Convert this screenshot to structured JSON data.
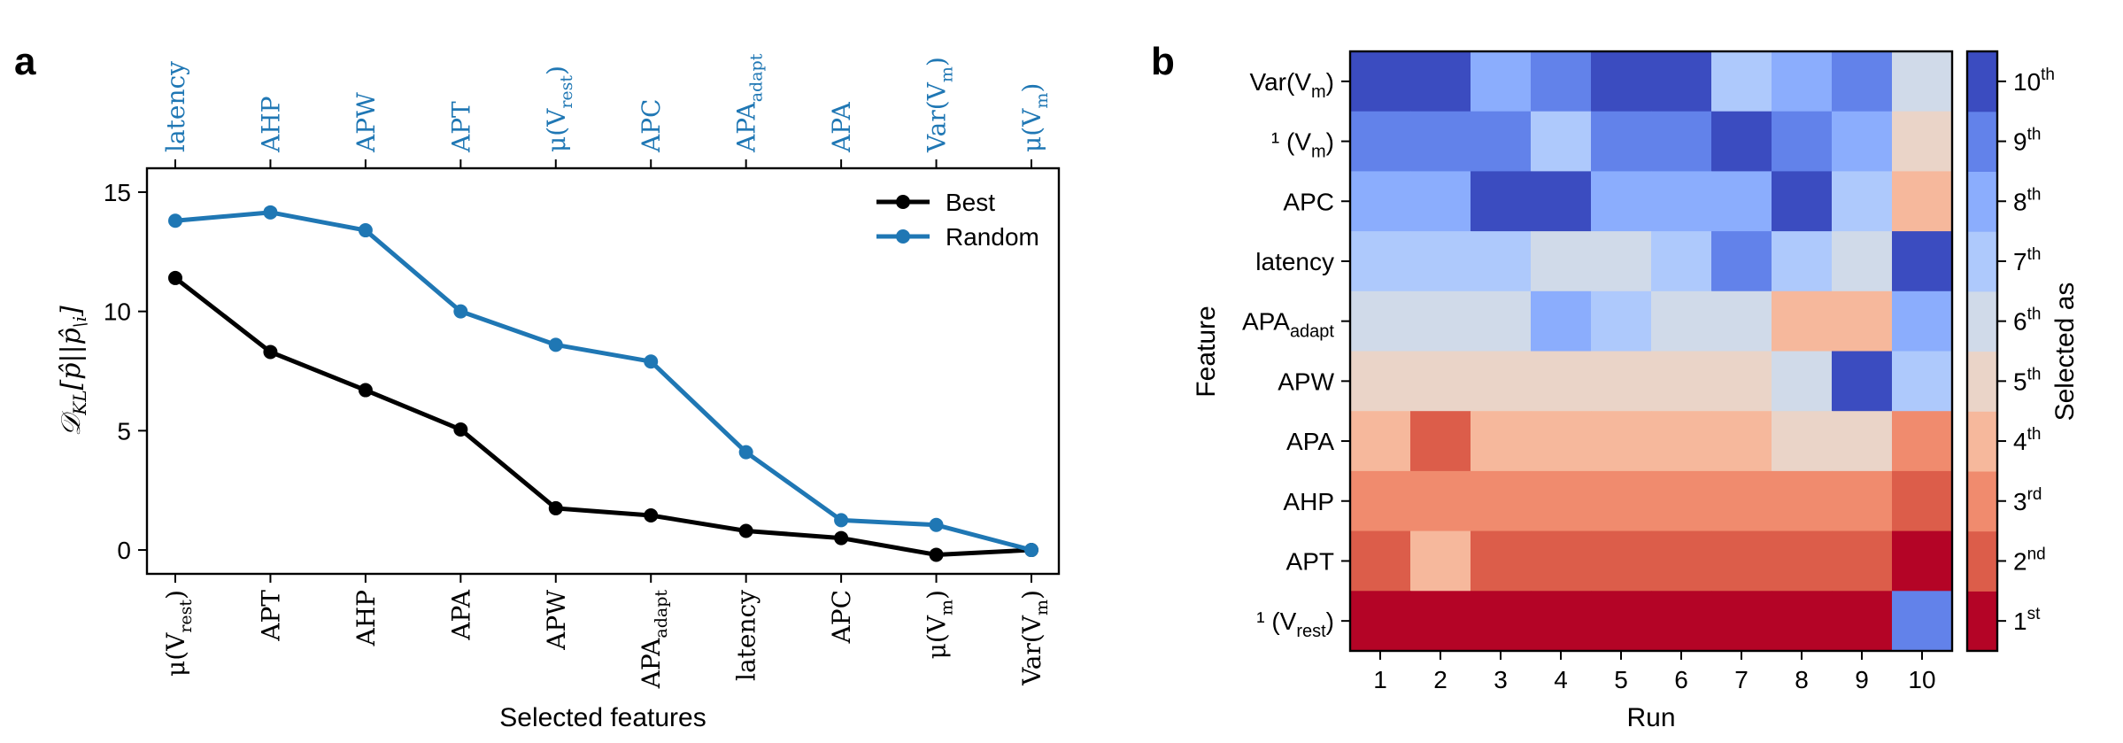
{
  "panels": {
    "a": "a",
    "b": "b"
  },
  "chart_data": [
    {
      "type": "line",
      "panel": "a",
      "xlabel": "Selected features",
      "ylabel": "𝒟_KL[p̂||p̂\\i]",
      "ylim": [
        -1,
        16
      ],
      "yticks": [
        0,
        5,
        10,
        15
      ],
      "legend_position": "top-right",
      "top_ticks_color": "#1f77b4",
      "series": [
        {
          "name": "Best",
          "color": "#000000",
          "labels": [
            "μ(V_rest)",
            "APT",
            "AHP",
            "APA",
            "APW",
            "APA_adapt",
            "latency",
            "APC",
            "μ(V_m)",
            "Var(V_m)"
          ],
          "values": [
            11.4,
            8.3,
            6.7,
            5.05,
            1.75,
            1.45,
            0.8,
            0.5,
            -0.2,
            0.0
          ]
        },
        {
          "name": "Random",
          "color": "#1f77b4",
          "labels": [
            "latency",
            "AHP",
            "APW",
            "APT",
            "μ(V_rest)",
            "APC",
            "APA_adapt",
            "APA",
            "Var(V_m)",
            "μ(V_m)"
          ],
          "values": [
            13.8,
            14.15,
            13.4,
            10.0,
            8.6,
            7.9,
            4.1,
            1.25,
            1.05,
            0.0
          ]
        }
      ]
    },
    {
      "type": "heatmap",
      "panel": "b",
      "xlabel": "Run",
      "ylabel": "Feature",
      "x": [
        "1",
        "2",
        "3",
        "4",
        "5",
        "6",
        "7",
        "8",
        "9",
        "10"
      ],
      "rows": [
        "Var(V_m)",
        "¹ (V_m)",
        "APC",
        "latency",
        "APA_adapt",
        "APW",
        "APA",
        "AHP",
        "APT",
        "¹ (V_rest)"
      ],
      "values": [
        [
          10,
          10,
          8,
          9,
          10,
          10,
          7,
          8,
          9,
          6
        ],
        [
          9,
          9,
          9,
          7,
          9,
          9,
          10,
          9,
          8,
          5
        ],
        [
          8,
          8,
          10,
          10,
          8,
          8,
          8,
          10,
          7,
          4
        ],
        [
          7,
          7,
          7,
          6,
          6,
          7,
          9,
          7,
          6,
          10
        ],
        [
          6,
          6,
          6,
          8,
          7,
          6,
          6,
          4,
          4,
          8
        ],
        [
          5,
          5,
          5,
          5,
          5,
          5,
          5,
          6,
          10,
          7
        ],
        [
          4,
          2,
          4,
          4,
          4,
          4,
          4,
          5,
          5,
          3
        ],
        [
          3,
          3,
          3,
          3,
          3,
          3,
          3,
          3,
          3,
          2
        ],
        [
          2,
          4,
          2,
          2,
          2,
          2,
          2,
          2,
          2,
          1
        ],
        [
          1,
          1,
          1,
          1,
          1,
          1,
          1,
          1,
          1,
          9
        ]
      ],
      "colormap": {
        "1": "#b40426",
        "2": "#dc5d4a",
        "3": "#f08b6e",
        "4": "#f6b89c",
        "5": "#ead4c8",
        "6": "#d0dae9",
        "7": "#aec9fc",
        "8": "#8badfd",
        "9": "#6282ea",
        "10": "#3b4cc0"
      },
      "colorbar": {
        "label": "Selected as",
        "ticks": [
          {
            "num": "1",
            "suf": "st"
          },
          {
            "num": "2",
            "suf": "nd"
          },
          {
            "num": "3",
            "suf": "rd"
          },
          {
            "num": "4",
            "suf": "th"
          },
          {
            "num": "5",
            "suf": "th"
          },
          {
            "num": "6",
            "suf": "th"
          },
          {
            "num": "7",
            "suf": "th"
          },
          {
            "num": "8",
            "suf": "th"
          },
          {
            "num": "9",
            "suf": "th"
          },
          {
            "num": "10",
            "suf": "th"
          }
        ]
      }
    }
  ]
}
